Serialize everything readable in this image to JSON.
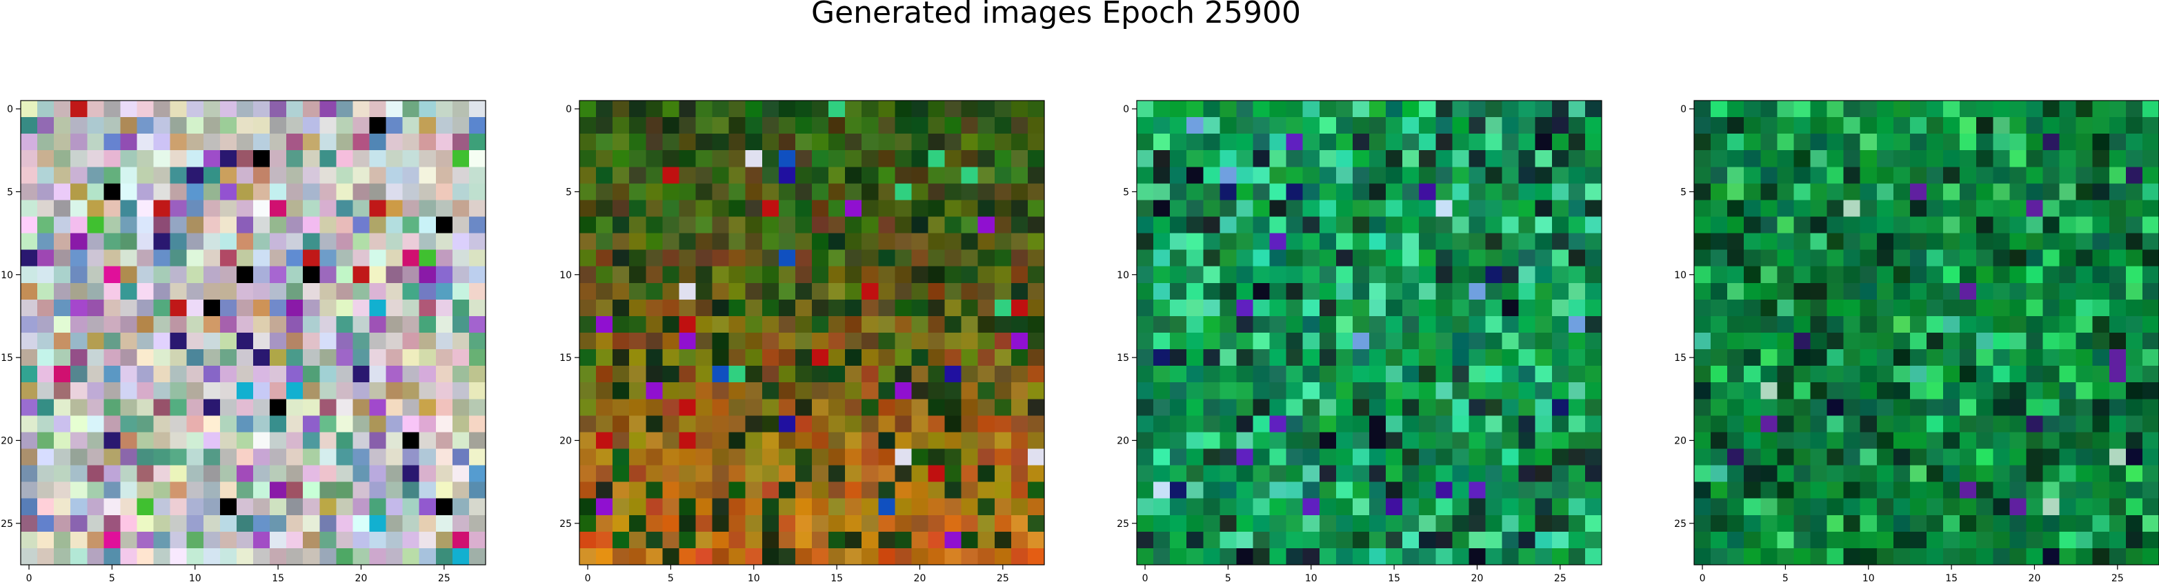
{
  "figure": {
    "title": "Generated images Epoch 25900"
  },
  "chart_data": [
    {
      "type": "heatmap",
      "palette": "pastel",
      "grid_size": 28,
      "xticks": [
        0,
        5,
        10,
        15,
        20,
        25
      ],
      "yticks": [
        0,
        5,
        10,
        15,
        20,
        25
      ],
      "xlim": [
        -0.5,
        27.5
      ],
      "ylim": [
        27.5,
        -0.5
      ],
      "grid": false
    },
    {
      "type": "heatmap",
      "palette": "earth",
      "grid_size": 28,
      "xticks": [
        0,
        5,
        10,
        15,
        20,
        25
      ],
      "yticks": [
        0,
        5,
        10,
        15,
        20,
        25
      ],
      "xlim": [
        -0.5,
        27.5
      ],
      "ylim": [
        27.5,
        -0.5
      ],
      "grid": false
    },
    {
      "type": "heatmap",
      "palette": "green-bright",
      "grid_size": 28,
      "xticks": [
        0,
        5,
        10,
        15,
        20,
        25
      ],
      "yticks": [
        0,
        5,
        10,
        15,
        20,
        25
      ],
      "xlim": [
        -0.5,
        27.5
      ],
      "ylim": [
        27.5,
        -0.5
      ],
      "grid": false
    },
    {
      "type": "heatmap",
      "palette": "green-dark",
      "grid_size": 28,
      "xticks": [
        0,
        5,
        10,
        15,
        20,
        25
      ],
      "yticks": [
        0,
        5,
        10,
        15,
        20,
        25
      ],
      "xlim": [
        -0.5,
        27.5
      ],
      "ylim": [
        27.5,
        -0.5
      ],
      "grid": false
    }
  ]
}
